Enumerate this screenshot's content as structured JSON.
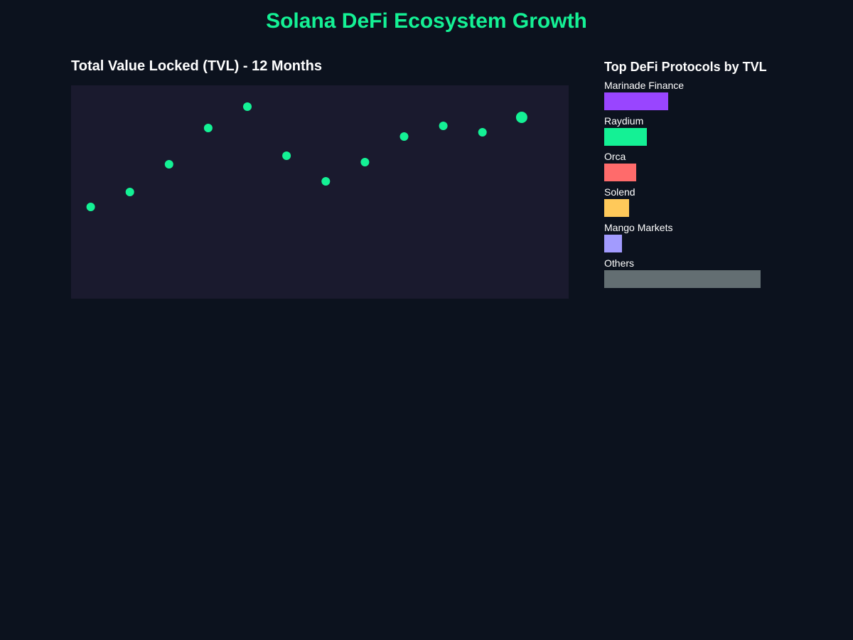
{
  "header": {
    "title": "Solana DeFi Ecosystem Growth"
  },
  "tvl_chart": {
    "title": "Total Value Locked (TVL) - 12 Months",
    "background_color": "#1a1a2e",
    "point_color": "#14f195"
  },
  "protocols_panel": {
    "title": "Top DeFi Protocols by TVL"
  },
  "chart_data": [
    {
      "type": "scatter",
      "title": "Total Value Locked (TVL) - 12 Months",
      "xlabel": "",
      "ylabel": "",
      "x": [
        1,
        2,
        3,
        4,
        5,
        6,
        7,
        8,
        9,
        10,
        11,
        12
      ],
      "values": [
        4.3,
        5.0,
        6.3,
        8.0,
        9.0,
        6.7,
        5.5,
        6.4,
        7.6,
        8.1,
        7.8,
        8.5
      ],
      "ylim": [
        0,
        10
      ],
      "xlim": [
        0.5,
        13.2
      ],
      "highlight_last": true,
      "grid": false,
      "color": "#14f195"
    },
    {
      "type": "bar",
      "title": "Top DeFi Protocols by TVL",
      "orientation": "horizontal",
      "categories": [
        "Marinade Finance",
        "Raydium",
        "Orca",
        "Solend",
        "Mango Markets",
        "Others"
      ],
      "values": [
        18,
        12,
        9,
        7,
        5,
        44
      ],
      "colors": [
        "#9945ff",
        "#14f195",
        "#ff6b6b",
        "#ffc95a",
        "#a29bfe",
        "#636e72"
      ],
      "xlim": [
        0,
        64
      ]
    }
  ]
}
